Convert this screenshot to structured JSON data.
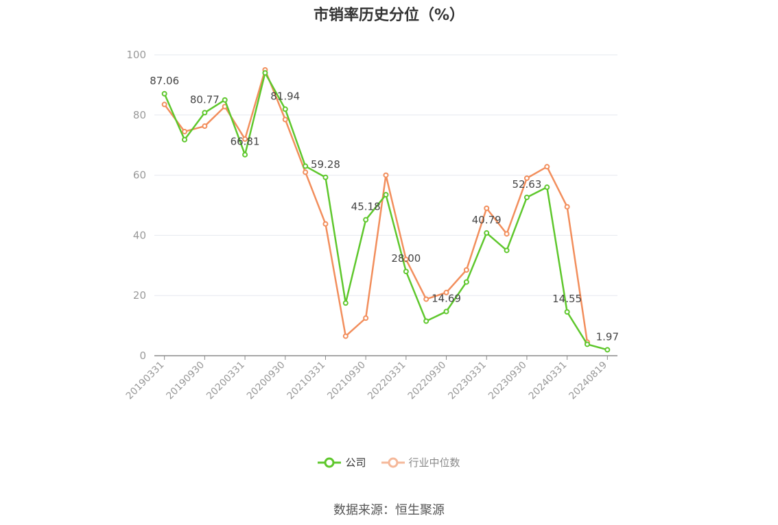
{
  "title": "市销率历史分位（%）",
  "source": "数据来源：恒生聚源",
  "colors": {
    "company": "#5ec72c",
    "industry": "#f28e5c",
    "grid": "#e6e8ef",
    "axis": "#999999",
    "label": "#444444"
  },
  "chart_data": {
    "type": "line",
    "title": "市销率历史分位（%）",
    "xlabel": "",
    "ylabel": "",
    "ylim": [
      0,
      100
    ],
    "yticks": [
      0,
      20,
      40,
      60,
      80,
      100
    ],
    "grid": true,
    "legend_position": "bottom",
    "x": [
      "20190331",
      "20190630",
      "20190930",
      "20191231",
      "20200331",
      "20200630",
      "20200930",
      "20201231",
      "20210331",
      "20210630",
      "20210930",
      "20211231",
      "20220331",
      "20220630",
      "20220930",
      "20221231",
      "20230331",
      "20230630",
      "20230930",
      "20231231",
      "20240331",
      "20240630",
      "20240819"
    ],
    "x_tick_labels": [
      "20190331",
      "20190930",
      "20200331",
      "20200930",
      "20210331",
      "20210930",
      "20220331",
      "20220930",
      "20230331",
      "20230930",
      "20240331",
      "20240819"
    ],
    "series": [
      {
        "name": "公司",
        "color": "#5ec72c",
        "values": [
          87.06,
          71.8,
          80.77,
          85.0,
          66.81,
          94.0,
          81.94,
          63.0,
          59.28,
          17.5,
          45.18,
          53.5,
          28.0,
          11.5,
          14.69,
          24.5,
          40.79,
          35.0,
          52.63,
          56.0,
          14.55,
          3.8,
          1.97
        ]
      },
      {
        "name": "行业中位数",
        "color": "#f28e5c",
        "values": [
          83.5,
          74.5,
          76.3,
          82.8,
          72.0,
          95.0,
          78.5,
          61.0,
          43.8,
          6.5,
          12.5,
          60.0,
          32.0,
          18.8,
          21.0,
          28.5,
          49.0,
          40.5,
          59.0,
          62.8,
          49.5,
          4.5,
          null
        ]
      }
    ],
    "data_labels": [
      {
        "index": 0,
        "text": "87.06"
      },
      {
        "index": 2,
        "text": "80.77"
      },
      {
        "index": 4,
        "text": "66.81"
      },
      {
        "index": 6,
        "text": "81.94"
      },
      {
        "index": 8,
        "text": "59.28"
      },
      {
        "index": 10,
        "text": "45.18"
      },
      {
        "index": 12,
        "text": "28.00"
      },
      {
        "index": 14,
        "text": "14.69"
      },
      {
        "index": 16,
        "text": "40.79"
      },
      {
        "index": 18,
        "text": "52.63"
      },
      {
        "index": 20,
        "text": "14.55"
      },
      {
        "index": 22,
        "text": "1.97"
      }
    ]
  }
}
